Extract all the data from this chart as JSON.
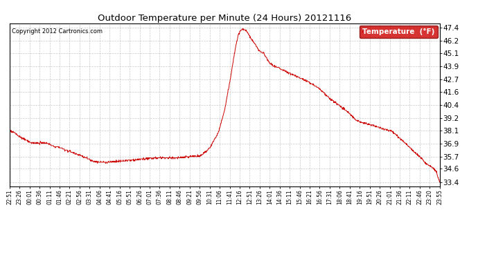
{
  "title": "Outdoor Temperature per Minute (24 Hours) 20121116",
  "copyright": "Copyright 2012 Cartronics.com",
  "legend_label": "Temperature  (°F)",
  "line_color": "#cc0000",
  "legend_bg": "#cc0000",
  "legend_text_color": "#ffffff",
  "background_color": "#ffffff",
  "grid_color": "#bbbbbb",
  "yticks": [
    33.4,
    34.6,
    35.7,
    36.9,
    38.1,
    39.2,
    40.4,
    41.6,
    42.7,
    43.9,
    45.1,
    46.2,
    47.4
  ],
  "ylim": [
    33.0,
    47.8
  ],
  "xtick_labels": [
    "22:51",
    "23:26",
    "00:01",
    "00:36",
    "01:11",
    "01:46",
    "02:21",
    "02:56",
    "03:31",
    "04:06",
    "04:41",
    "05:16",
    "05:51",
    "06:26",
    "07:01",
    "07:36",
    "08:11",
    "08:46",
    "09:21",
    "09:56",
    "10:31",
    "11:06",
    "11:41",
    "12:16",
    "12:51",
    "13:26",
    "14:01",
    "14:36",
    "15:11",
    "15:46",
    "16:21",
    "16:56",
    "17:31",
    "18:06",
    "18:41",
    "19:16",
    "19:51",
    "20:26",
    "21:01",
    "21:36",
    "22:11",
    "22:46",
    "23:20",
    "23:55"
  ],
  "num_points": 1440,
  "figsize": [
    6.9,
    3.75
  ],
  "dpi": 100
}
